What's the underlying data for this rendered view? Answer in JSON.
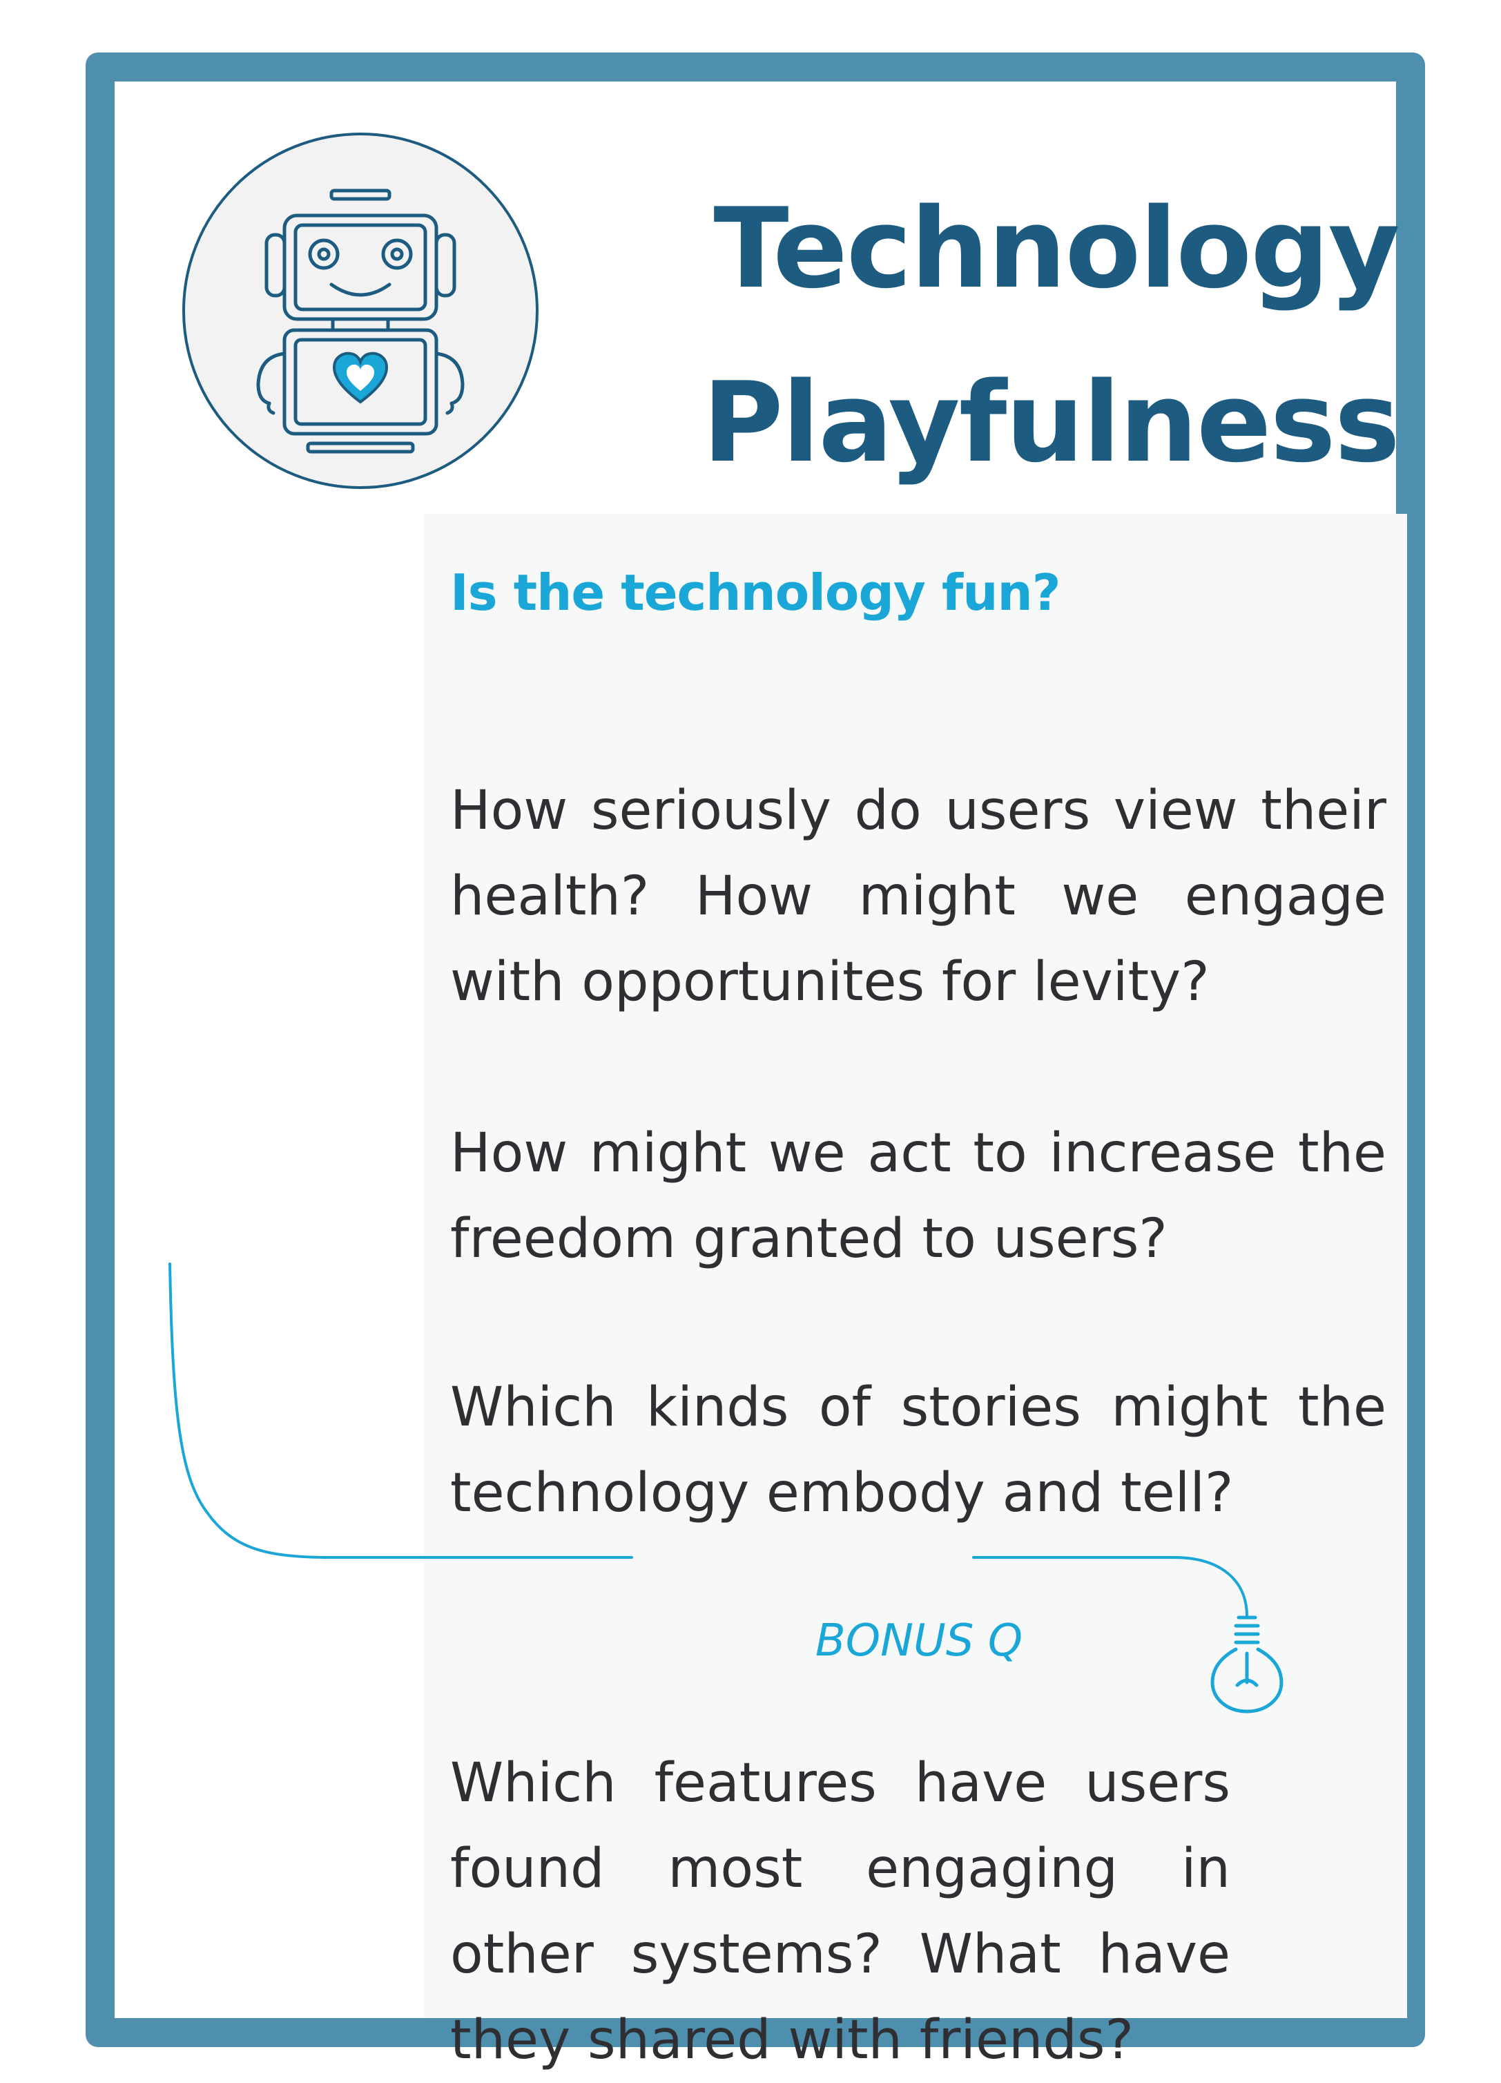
{
  "card": {
    "title_line1": "Technology",
    "title_line2": "Playfulness",
    "subtitle_question": "Is the technology fun?",
    "questions": [
      "How seriously do users view their health? How might we engage with opportunites for levity?",
      "How might we act to increase the freedom granted to users?",
      "Which kinds of stories might the technology embody and tell?"
    ],
    "bonus_label": "BONUS Q",
    "bonus_question": "Which features have users found most engaging in other systems? What have they shared with friends?"
  },
  "icons": {
    "illustration": "robot-icon",
    "heart": "heart-icon",
    "bonus": "lightbulb-icon"
  },
  "colors": {
    "frame": "#4e8fad",
    "title": "#1d5c80",
    "accent": "#1aa6d6",
    "body_text": "#2f2f33",
    "panel_background": "#f7f8f8",
    "circle_fill": "#f2f2f2",
    "robot_stroke": "#1d5c80"
  }
}
